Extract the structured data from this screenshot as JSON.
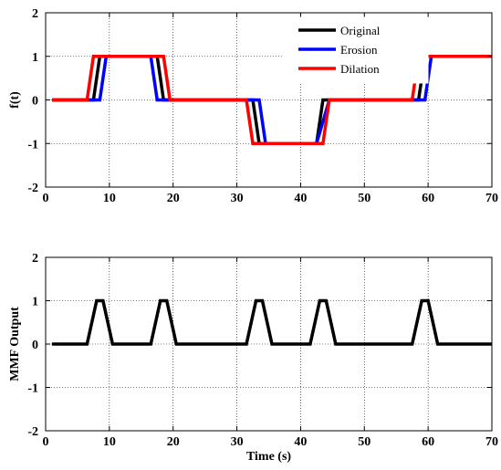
{
  "chart_data": [
    {
      "type": "line",
      "xlabel": "",
      "ylabel": "f(t)",
      "xlim": [
        0,
        70
      ],
      "ylim": [
        -2,
        2
      ],
      "xticks": [
        "0",
        "10",
        "20",
        "30",
        "40",
        "50",
        "60",
        "70"
      ],
      "yticks": [
        "-2",
        "-1",
        "0",
        "1",
        "2"
      ],
      "grid": true,
      "legend": "top-right",
      "series": [
        {
          "name": "Original",
          "color": "#000000",
          "x": [
            1,
            7.5,
            8.5,
            17.5,
            18.5,
            32.5,
            33.5,
            42.5,
            43.5,
            58.5,
            59.5,
            70
          ],
          "y": [
            0,
            0,
            1,
            1,
            0,
            0,
            -1,
            -1,
            0,
            0,
            1,
            1
          ]
        },
        {
          "name": "Erosion",
          "color": "#0000ff",
          "x": [
            1,
            8.5,
            9.5,
            16.5,
            17.5,
            33.5,
            34.5,
            41.5,
            42.5,
            44.5,
            59.5,
            60.5,
            70
          ],
          "y": [
            0,
            0,
            1,
            1,
            0,
            0,
            -1,
            -1,
            -1,
            0,
            0,
            1,
            1
          ]
        },
        {
          "name": "Dilation",
          "color": "#ff0000",
          "x": [
            1,
            6.5,
            7.5,
            18.5,
            19.5,
            31.5,
            32.5,
            43.5,
            44.5,
            57.5,
            58.5,
            70
          ],
          "y": [
            0,
            0,
            1,
            1,
            0,
            0,
            -1,
            -1,
            0,
            0,
            1,
            1
          ]
        }
      ]
    },
    {
      "type": "line",
      "xlabel": "Time (s)",
      "ylabel": "MMF Output",
      "xlim": [
        0,
        70
      ],
      "ylim": [
        -2,
        2
      ],
      "xticks": [
        "0",
        "10",
        "20",
        "30",
        "40",
        "50",
        "60",
        "70"
      ],
      "yticks": [
        "-2",
        "-1",
        "0",
        "1",
        "2"
      ],
      "grid": true,
      "series": [
        {
          "color": "#000000",
          "x": [
            1,
            6.5,
            8,
            9,
            10.5,
            16.5,
            18,
            19,
            20.5,
            31.5,
            33,
            34,
            35.5,
            41.5,
            43,
            44,
            45.5,
            57.5,
            59,
            60,
            61.5,
            70
          ],
          "y": [
            0,
            0,
            1,
            1,
            0,
            0,
            1,
            1,
            0,
            0,
            1,
            1,
            0,
            0,
            1,
            1,
            0,
            0,
            1,
            1,
            0,
            0
          ]
        }
      ]
    }
  ]
}
